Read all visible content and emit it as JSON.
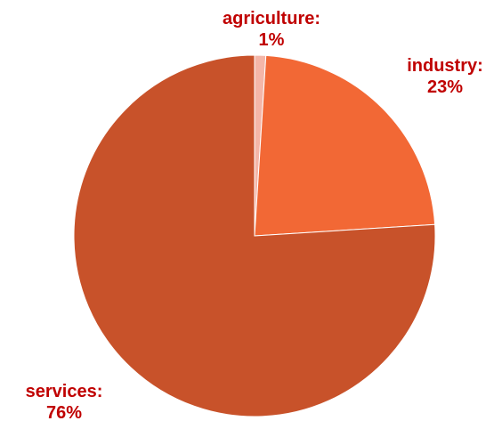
{
  "chart_data": {
    "type": "pie",
    "title": "",
    "slices": [
      {
        "label": "agriculture",
        "value": 1,
        "display": "1%",
        "color": "#F4B6A8"
      },
      {
        "label": "industry",
        "value": 23,
        "display": "23%",
        "color": "#F26835"
      },
      {
        "label": "services",
        "value": 76,
        "display": "76%",
        "color": "#C8522A"
      }
    ],
    "label_color": "#C00000",
    "start": "12 o'clock, clockwise"
  }
}
